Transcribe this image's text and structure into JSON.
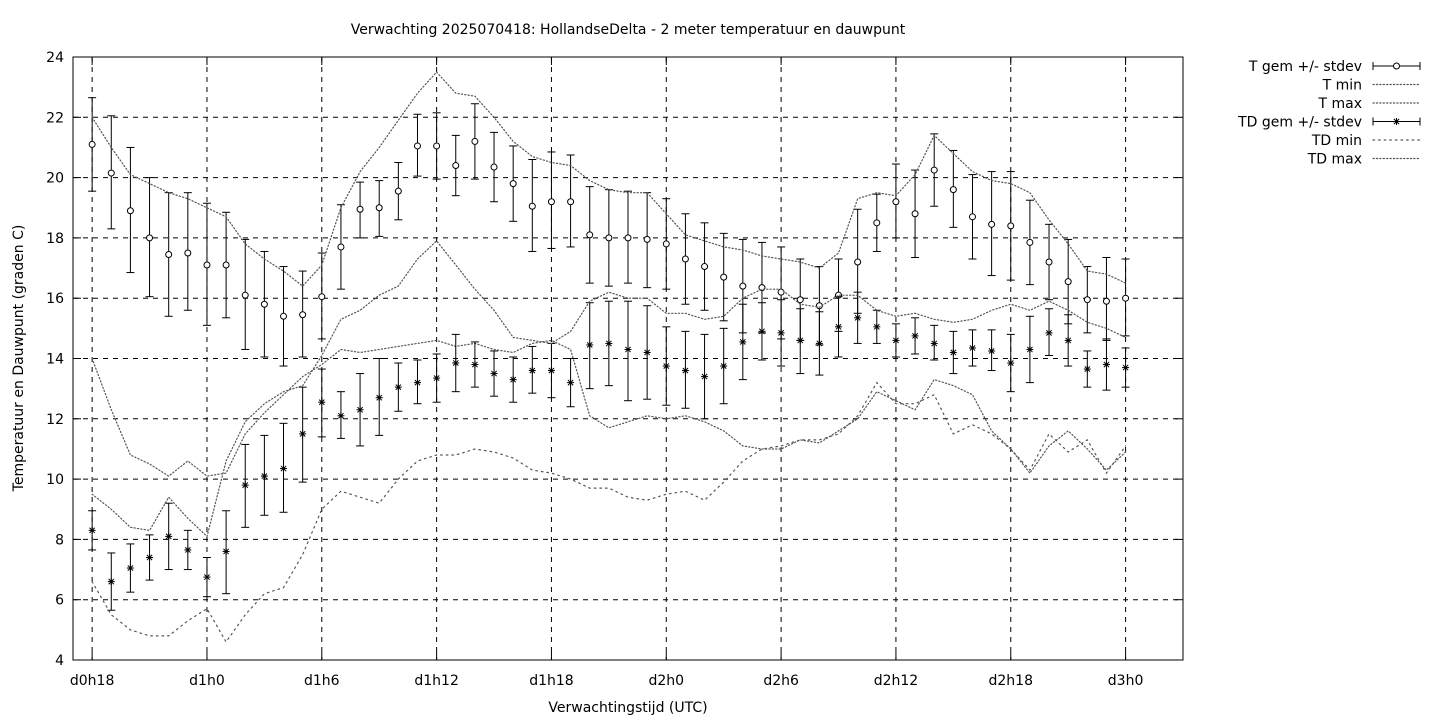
{
  "chart_data": {
    "type": "line",
    "title": "Verwachting 2025070418: HollandseDelta - 2 meter temperatuur en dauwpunt",
    "xlabel": "Verwachtingstijd (UTC)",
    "ylabel": "Temperatuur en Dauwpunt (graden C)",
    "xlim": [
      -1,
      57
    ],
    "ylim": [
      4,
      24
    ],
    "grid": true,
    "legend_position": "outside-top-right",
    "x_ticks": [
      {
        "x": 0,
        "label": "d0h18"
      },
      {
        "x": 6,
        "label": "d1h0"
      },
      {
        "x": 12,
        "label": "d1h6"
      },
      {
        "x": 18,
        "label": "d1h12"
      },
      {
        "x": 24,
        "label": "d1h18"
      },
      {
        "x": 30,
        "label": "d2h0"
      },
      {
        "x": 36,
        "label": "d2h6"
      },
      {
        "x": 42,
        "label": "d2h12"
      },
      {
        "x": 48,
        "label": "d2h18"
      },
      {
        "x": 54,
        "label": "d3h0"
      }
    ],
    "y_ticks": [
      4,
      6,
      8,
      10,
      12,
      14,
      16,
      18,
      20,
      22,
      24
    ],
    "series": [
      {
        "name": "T gem +/- stdev",
        "style": "errorbar",
        "marker": "circle",
        "x": [
          0,
          1,
          2,
          3,
          4,
          5,
          6,
          7,
          8,
          9,
          10,
          11,
          12,
          13,
          14,
          15,
          16,
          17,
          18,
          19,
          20,
          21,
          22,
          23,
          24,
          25,
          26,
          27,
          28,
          29,
          30,
          31,
          32,
          33,
          34,
          35,
          36,
          37,
          38,
          39,
          40,
          41,
          42,
          43,
          44,
          45,
          46,
          47,
          48,
          49,
          50,
          51,
          52,
          53,
          54
        ],
        "y": [
          21.1,
          20.15,
          18.9,
          18.0,
          17.45,
          17.5,
          17.1,
          17.1,
          16.1,
          15.8,
          15.4,
          15.45,
          16.05,
          17.7,
          18.95,
          19.0,
          19.55,
          21.05,
          21.05,
          20.4,
          21.2,
          20.35,
          19.8,
          19.05,
          19.2,
          19.2,
          18.1,
          18.0,
          18.0,
          17.95,
          17.8,
          17.3,
          17.05,
          16.7,
          16.4,
          16.35,
          16.2,
          15.95,
          15.75,
          16.1,
          17.2,
          18.5,
          19.2,
          18.8,
          20.25,
          19.6,
          18.7,
          18.45,
          18.4,
          17.85,
          17.2,
          16.55,
          15.95,
          15.9,
          16.0
        ],
        "low": [
          19.55,
          18.3,
          16.85,
          16.05,
          15.4,
          15.6,
          15.1,
          15.35,
          14.3,
          14.05,
          13.75,
          14.05,
          14.65,
          16.3,
          18.0,
          18.05,
          18.6,
          20.05,
          19.95,
          19.4,
          19.95,
          19.2,
          18.55,
          17.55,
          17.65,
          17.7,
          16.5,
          16.4,
          16.5,
          16.35,
          16.3,
          15.8,
          15.6,
          15.25,
          14.85,
          14.85,
          14.65,
          14.6,
          14.45,
          14.9,
          15.5,
          17.55,
          18.0,
          17.35,
          19.05,
          18.35,
          17.3,
          16.75,
          16.6,
          16.45,
          15.95,
          15.15,
          14.85,
          14.6,
          14.75
        ],
        "high": [
          22.65,
          22.05,
          21.0,
          20.0,
          19.5,
          19.5,
          19.15,
          18.85,
          17.95,
          17.55,
          17.05,
          16.9,
          17.5,
          19.1,
          19.85,
          19.9,
          20.5,
          22.1,
          22.15,
          21.4,
          22.45,
          21.5,
          21.05,
          20.6,
          20.85,
          20.75,
          19.7,
          19.6,
          19.55,
          19.5,
          19.3,
          18.8,
          18.5,
          18.15,
          17.95,
          17.85,
          17.7,
          17.3,
          17.05,
          17.3,
          18.95,
          19.45,
          20.45,
          20.25,
          21.45,
          20.9,
          20.1,
          20.2,
          20.2,
          19.25,
          18.45,
          17.95,
          17.05,
          17.35,
          17.3
        ]
      },
      {
        "name": "T min",
        "style": "dotted",
        "x": [
          0,
          1,
          2,
          3,
          4,
          5,
          6,
          7,
          8,
          9,
          10,
          11,
          12,
          13,
          14,
          15,
          16,
          17,
          18,
          19,
          20,
          21,
          22,
          23,
          24,
          25,
          26,
          27,
          28,
          29,
          30,
          31,
          32,
          33,
          34,
          35,
          36,
          37,
          38,
          39,
          40,
          41,
          42,
          43,
          44,
          45,
          46,
          47,
          48,
          49,
          50,
          51,
          52,
          53,
          54
        ],
        "y": [
          14.0,
          12.3,
          10.8,
          10.5,
          10.1,
          10.6,
          10.1,
          10.2,
          11.5,
          12.2,
          12.8,
          13.4,
          13.8,
          14.3,
          14.2,
          14.3,
          14.4,
          14.5,
          14.6,
          14.4,
          14.5,
          14.3,
          14.2,
          14.5,
          14.6,
          14.3,
          12.1,
          11.7,
          11.9,
          12.1,
          12.0,
          12.1,
          11.9,
          11.6,
          11.1,
          11.0,
          11.0,
          11.3,
          11.2,
          11.6,
          12.0,
          12.9,
          12.6,
          12.3,
          13.3,
          13.1,
          12.8,
          11.6,
          11.0,
          10.2,
          11.1,
          11.6,
          11.0,
          10.3,
          10.9
        ]
      },
      {
        "name": "T max",
        "style": "dotted",
        "x": [
          0,
          1,
          2,
          3,
          4,
          5,
          6,
          7,
          8,
          9,
          10,
          11,
          12,
          13,
          14,
          15,
          16,
          17,
          18,
          19,
          20,
          21,
          22,
          23,
          24,
          25,
          26,
          27,
          28,
          29,
          30,
          31,
          32,
          33,
          34,
          35,
          36,
          37,
          38,
          39,
          40,
          41,
          42,
          43,
          44,
          45,
          46,
          47,
          48,
          49,
          50,
          51,
          52,
          53,
          54
        ],
        "y": [
          22.0,
          21.0,
          20.1,
          19.8,
          19.5,
          19.3,
          19.0,
          18.7,
          17.8,
          17.3,
          16.9,
          16.4,
          17.1,
          19.0,
          20.2,
          21.0,
          21.9,
          22.8,
          23.5,
          22.8,
          22.7,
          22.0,
          21.2,
          20.7,
          20.5,
          20.4,
          19.9,
          19.6,
          19.5,
          19.5,
          18.8,
          18.1,
          17.9,
          17.7,
          17.6,
          17.4,
          17.3,
          17.2,
          17.0,
          17.5,
          19.3,
          19.5,
          19.4,
          20.1,
          21.4,
          20.8,
          20.2,
          19.9,
          19.8,
          19.5,
          18.6,
          17.8,
          16.9,
          16.8,
          16.5
        ]
      },
      {
        "name": "TD gem +/- stdev",
        "style": "errorbar",
        "marker": "star",
        "x": [
          0,
          1,
          2,
          3,
          4,
          5,
          6,
          7,
          8,
          9,
          10,
          11,
          12,
          13,
          14,
          15,
          16,
          17,
          18,
          19,
          20,
          21,
          22,
          23,
          24,
          25,
          26,
          27,
          28,
          29,
          30,
          31,
          32,
          33,
          34,
          35,
          36,
          37,
          38,
          39,
          40,
          41,
          42,
          43,
          44,
          45,
          46,
          47,
          48,
          49,
          50,
          51,
          52,
          53,
          54
        ],
        "y": [
          8.3,
          6.6,
          7.05,
          7.4,
          8.1,
          7.65,
          6.75,
          7.6,
          9.8,
          10.1,
          10.35,
          11.5,
          12.55,
          12.1,
          12.3,
          12.7,
          13.05,
          13.2,
          13.35,
          13.85,
          13.8,
          13.5,
          13.3,
          13.6,
          13.6,
          13.2,
          14.45,
          14.5,
          14.3,
          14.2,
          13.75,
          13.6,
          13.4,
          13.75,
          14.55,
          14.9,
          14.85,
          14.6,
          14.5,
          15.05,
          15.35,
          15.05,
          14.6,
          14.75,
          14.5,
          14.2,
          14.35,
          14.25,
          13.85,
          14.3,
          14.85,
          14.6,
          13.65,
          13.8,
          13.7
        ],
        "low": [
          7.65,
          5.65,
          6.25,
          6.65,
          7.0,
          7.0,
          6.1,
          6.2,
          8.4,
          8.8,
          8.9,
          9.9,
          11.4,
          11.35,
          11.1,
          11.45,
          12.25,
          12.5,
          12.55,
          12.9,
          13.05,
          12.75,
          12.55,
          12.85,
          12.7,
          12.4,
          13.0,
          13.1,
          12.6,
          12.65,
          12.45,
          12.35,
          12.0,
          12.5,
          13.3,
          13.95,
          13.75,
          13.5,
          13.45,
          14.05,
          14.5,
          14.5,
          14.05,
          14.15,
          13.95,
          13.5,
          13.75,
          13.6,
          12.9,
          13.2,
          14.1,
          13.75,
          13.05,
          12.95,
          13.05
        ],
        "high": [
          8.95,
          7.55,
          7.85,
          8.15,
          9.2,
          8.3,
          7.4,
          8.95,
          11.15,
          11.45,
          11.85,
          13.05,
          13.65,
          12.9,
          13.5,
          14.0,
          13.85,
          13.95,
          14.15,
          14.8,
          14.55,
          14.25,
          14.05,
          14.4,
          14.5,
          14.0,
          15.85,
          15.9,
          15.9,
          15.75,
          15.05,
          14.9,
          14.8,
          15.0,
          15.8,
          15.85,
          15.95,
          15.65,
          15.55,
          16.05,
          16.2,
          15.6,
          15.15,
          15.35,
          15.1,
          14.9,
          14.95,
          14.95,
          14.8,
          15.4,
          15.65,
          15.45,
          14.25,
          14.65,
          14.35
        ]
      },
      {
        "name": "TD min",
        "style": "dotted-sparse",
        "x": [
          0,
          1,
          2,
          3,
          4,
          5,
          6,
          7,
          8,
          9,
          10,
          11,
          12,
          13,
          14,
          15,
          16,
          17,
          18,
          19,
          20,
          21,
          22,
          23,
          24,
          25,
          26,
          27,
          28,
          29,
          30,
          31,
          32,
          33,
          34,
          35,
          36,
          37,
          38,
          39,
          40,
          41,
          42,
          43,
          44,
          45,
          46,
          47,
          48,
          49,
          50,
          51,
          52,
          53,
          54
        ],
        "y": [
          6.6,
          5.5,
          5.0,
          4.8,
          4.8,
          5.3,
          5.7,
          4.6,
          5.5,
          6.2,
          6.4,
          7.5,
          9.0,
          9.6,
          9.4,
          9.2,
          10.0,
          10.6,
          10.8,
          10.8,
          11.0,
          10.9,
          10.7,
          10.3,
          10.2,
          10.0,
          9.7,
          9.7,
          9.4,
          9.3,
          9.5,
          9.6,
          9.3,
          9.9,
          10.6,
          11.0,
          11.1,
          11.3,
          11.3,
          11.5,
          12.1,
          13.2,
          12.5,
          12.5,
          12.8,
          11.5,
          11.8,
          11.5,
          11.0,
          10.3,
          11.5,
          10.9,
          11.3,
          10.2,
          11.1
        ]
      },
      {
        "name": "TD max",
        "style": "dotted",
        "x": [
          0,
          1,
          2,
          3,
          4,
          5,
          6,
          7,
          8,
          9,
          10,
          11,
          12,
          13,
          14,
          15,
          16,
          17,
          18,
          19,
          20,
          21,
          22,
          23,
          24,
          25,
          26,
          27,
          28,
          29,
          30,
          31,
          32,
          33,
          34,
          35,
          36,
          37,
          38,
          39,
          40,
          41,
          42,
          43,
          44,
          45,
          46,
          47,
          48,
          49,
          50,
          51,
          52,
          53,
          54
        ],
        "y": [
          9.5,
          9.0,
          8.4,
          8.3,
          9.4,
          8.7,
          8.1,
          10.6,
          11.9,
          12.5,
          12.9,
          13.1,
          14.1,
          15.3,
          15.6,
          16.1,
          16.4,
          17.3,
          17.9,
          17.1,
          16.3,
          15.6,
          14.7,
          14.6,
          14.5,
          14.9,
          15.9,
          16.2,
          16.0,
          16.0,
          15.5,
          15.5,
          15.3,
          15.4,
          16.0,
          16.3,
          16.3,
          15.8,
          15.7,
          16.1,
          16.1,
          15.6,
          15.4,
          15.5,
          15.3,
          15.2,
          15.3,
          15.6,
          15.8,
          15.6,
          15.9,
          15.6,
          15.2,
          15.0,
          14.7
        ]
      }
    ]
  }
}
